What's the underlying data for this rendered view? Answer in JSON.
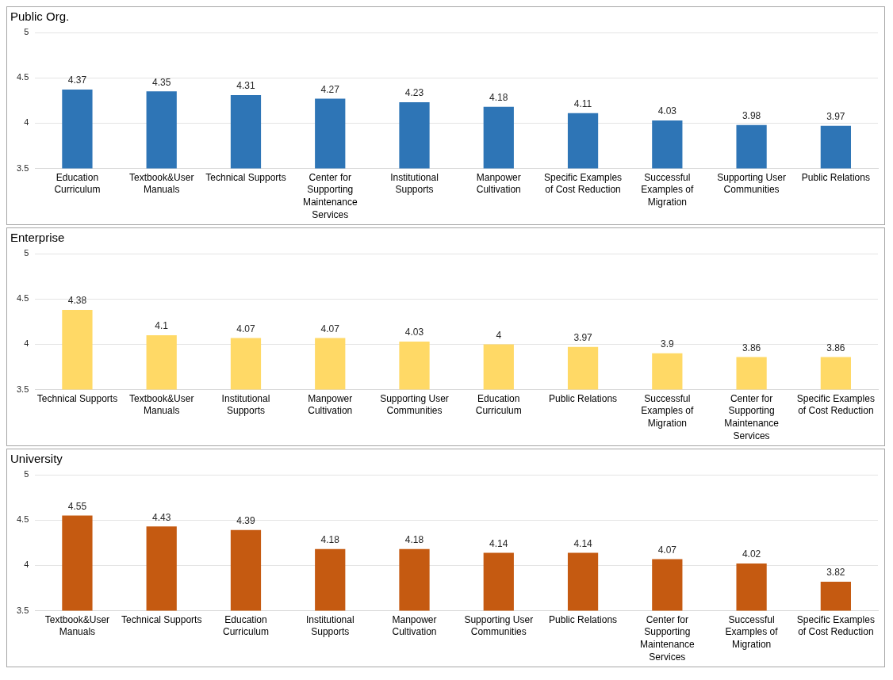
{
  "chart_data": [
    {
      "type": "bar",
      "title": "Public Org.",
      "categories": [
        "Education Curriculum",
        "Textbook&User Manuals",
        "Technical Supports",
        "Center for Supporting Maintenance Services",
        "Institutional Supports",
        "Manpower Cultivation",
        "Specific Examples of Cost Reduction",
        "Successful Examples of Migration",
        "Supporting User Communities",
        "Public Relations"
      ],
      "values": [
        4.37,
        4.35,
        4.31,
        4.27,
        4.23,
        4.18,
        4.11,
        4.03,
        3.98,
        3.97
      ],
      "color": "#2e75b6",
      "ylim": [
        3.5,
        5
      ],
      "yticks": [
        3.5,
        4,
        4.5,
        5
      ],
      "grid": "y",
      "data_labels": true
    },
    {
      "type": "bar",
      "title": "Enterprise",
      "categories": [
        "Technical Supports",
        "Textbook&User Manuals",
        "Institutional Supports",
        "Manpower Cultivation",
        "Supporting User Communities",
        "Education Curriculum",
        "Public Relations",
        "Successful Examples of Migration",
        "Center for Supporting Maintenance Services",
        "Specific Examples of Cost Reduction"
      ],
      "values": [
        4.38,
        4.1,
        4.07,
        4.07,
        4.03,
        4,
        3.97,
        3.9,
        3.86,
        3.86
      ],
      "color": "#ffd966",
      "ylim": [
        3.5,
        5
      ],
      "yticks": [
        3.5,
        4,
        4.5,
        5
      ],
      "grid": "y",
      "data_labels": true
    },
    {
      "type": "bar",
      "title": "University",
      "categories": [
        "Textbook&User Manuals",
        "Technical Supports",
        "Education Curriculum",
        "Institutional Supports",
        "Manpower Cultivation",
        "Supporting User Communities",
        "Public Relations",
        "Center for Supporting Maintenance Services",
        "Successful Examples of Migration",
        "Specific Examples of Cost Reduction"
      ],
      "values": [
        4.55,
        4.43,
        4.39,
        4.18,
        4.18,
        4.14,
        4.14,
        4.07,
        4.02,
        3.82
      ],
      "color": "#c55a11",
      "ylim": [
        3.5,
        5
      ],
      "yticks": [
        3.5,
        4,
        4.5,
        5
      ],
      "grid": "y",
      "data_labels": true
    }
  ]
}
